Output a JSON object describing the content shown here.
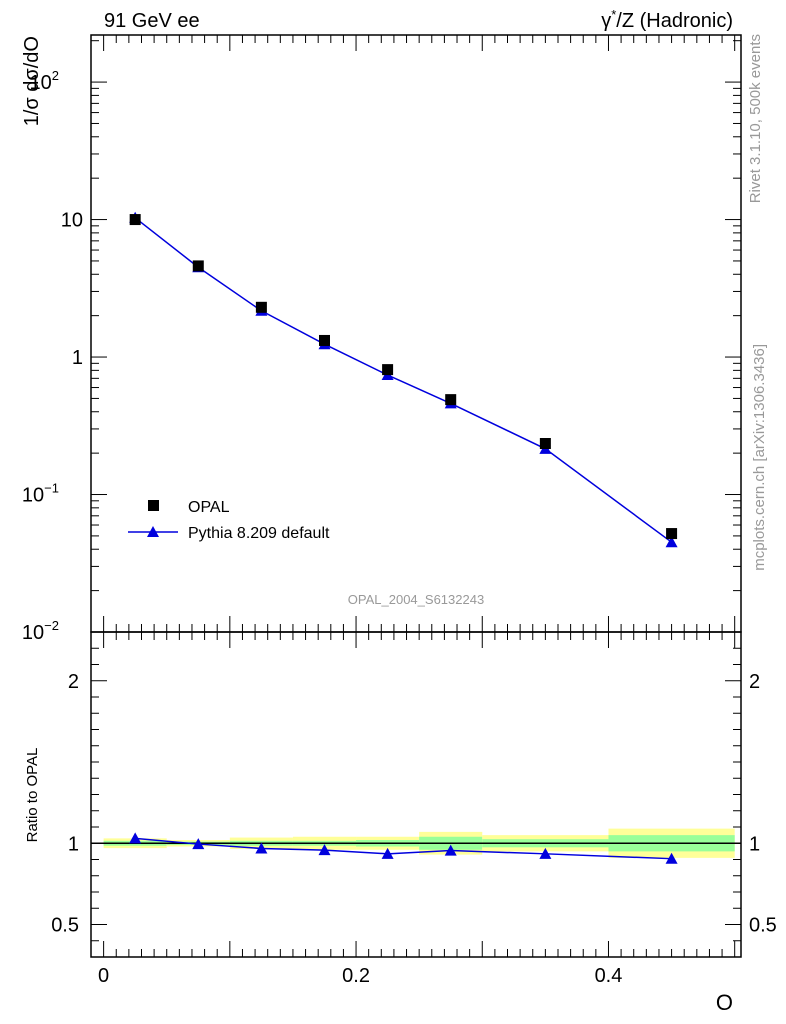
{
  "header": {
    "left": "91 GeV ee",
    "right_prefix": "γ",
    "right_sup": "*",
    "right_suffix": "/Z (Hadronic)"
  },
  "side_text": {
    "rivet": "Rivet 3.1.10,  500k events",
    "mcplots": "mcplots.cern.ch [arXiv:1306.3436]"
  },
  "colors": {
    "data": "#000000",
    "mc": "#0000dd",
    "band_inner": "#99ff99",
    "band_outer": "#ffff99",
    "watermark": "#999999"
  },
  "chart_data": [
    {
      "type": "scatter",
      "title": "",
      "ylabel": "1/σ dσ/dO",
      "xlabel": "",
      "yscale": "log",
      "xlim": [
        -0.01,
        0.505
      ],
      "ylim": [
        0.01,
        220
      ],
      "yticks": [
        {
          "v": 0.01,
          "base": "10",
          "exp": "−2"
        },
        {
          "v": 0.1,
          "base": "10",
          "exp": "−1"
        },
        {
          "v": 1,
          "base": "1",
          "exp": ""
        },
        {
          "v": 10,
          "base": "10",
          "exp": ""
        },
        {
          "v": 100,
          "base": "10",
          "exp": "2"
        }
      ],
      "watermark": "OPAL_2004_S6132243",
      "legend_position": "lower-left",
      "series": [
        {
          "name": "OPAL",
          "marker": "square",
          "x": [
            0.025,
            0.075,
            0.125,
            0.175,
            0.225,
            0.275,
            0.35,
            0.45
          ],
          "y": [
            10.0,
            4.6,
            2.3,
            1.32,
            0.81,
            0.49,
            0.235,
            0.052
          ]
        },
        {
          "name": "Pythia 8.209 default",
          "marker": "triangle",
          "x": [
            0.025,
            0.075,
            0.125,
            0.175,
            0.225,
            0.275,
            0.35,
            0.45
          ],
          "y": [
            10.3,
            4.5,
            2.17,
            1.24,
            0.74,
            0.46,
            0.215,
            0.045
          ]
        }
      ]
    },
    {
      "type": "line",
      "title": "",
      "ylabel": "Ratio to OPAL",
      "xlabel": "O",
      "xlim": [
        -0.01,
        0.505
      ],
      "ylim": [
        0.3,
        2.3
      ],
      "yticks": [
        0.5,
        1,
        2
      ],
      "ytick_labels": [
        "0.5",
        "1",
        "2"
      ],
      "xticks": [
        0,
        0.2,
        0.4
      ],
      "xtick_labels": [
        "0",
        "0.2",
        "0.4"
      ],
      "reference": 1,
      "bands": [
        {
          "x0": 0.0,
          "x1": 0.05,
          "inner": [
            0.985,
            1.015
          ],
          "outer": [
            0.97,
            1.03
          ]
        },
        {
          "x0": 0.05,
          "x1": 0.1,
          "inner": [
            0.99,
            1.01
          ],
          "outer": [
            0.98,
            1.02
          ]
        },
        {
          "x0": 0.1,
          "x1": 0.15,
          "inner": [
            0.985,
            1.015
          ],
          "outer": [
            0.965,
            1.035
          ]
        },
        {
          "x0": 0.15,
          "x1": 0.2,
          "inner": [
            0.985,
            1.015
          ],
          "outer": [
            0.96,
            1.04
          ]
        },
        {
          "x0": 0.2,
          "x1": 0.25,
          "inner": [
            0.98,
            1.02
          ],
          "outer": [
            0.96,
            1.04
          ]
        },
        {
          "x0": 0.25,
          "x1": 0.3,
          "inner": [
            0.96,
            1.04
          ],
          "outer": [
            0.93,
            1.07
          ]
        },
        {
          "x0": 0.3,
          "x1": 0.4,
          "inner": [
            0.975,
            1.025
          ],
          "outer": [
            0.95,
            1.05
          ]
        },
        {
          "x0": 0.4,
          "x1": 0.5,
          "inner": [
            0.95,
            1.05
          ],
          "outer": [
            0.91,
            1.09
          ]
        }
      ],
      "series": [
        {
          "name": "Pythia 8.209 default",
          "x": [
            0.025,
            0.075,
            0.125,
            0.175,
            0.225,
            0.275,
            0.35,
            0.45
          ],
          "y": [
            1.03,
            0.995,
            0.968,
            0.958,
            0.935,
            0.955,
            0.935,
            0.905
          ]
        }
      ]
    }
  ]
}
